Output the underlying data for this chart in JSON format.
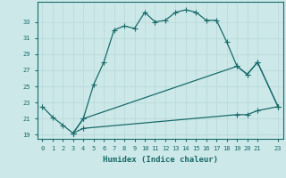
{
  "xlabel": "Humidex (Indice chaleur)",
  "bg_color": "#cce8e8",
  "grid_color": "#b0d4d4",
  "line_color": "#1a6b6b",
  "line1_x": [
    0,
    1,
    2,
    3,
    4,
    5,
    6,
    7,
    8,
    9,
    10,
    11,
    12,
    13,
    14,
    15,
    16,
    17,
    18,
    19,
    20,
    21,
    23
  ],
  "line1_y": [
    22.5,
    21.2,
    20.2,
    19.2,
    21.0,
    25.2,
    28.0,
    32.0,
    32.5,
    32.2,
    34.2,
    33.0,
    33.2,
    34.2,
    34.5,
    34.2,
    33.2,
    33.2,
    30.5,
    27.5,
    26.5,
    28.0,
    22.5
  ],
  "line2_x": [
    3,
    4,
    19,
    20,
    21,
    23
  ],
  "line2_y": [
    19.2,
    21.0,
    27.5,
    26.5,
    28.0,
    22.5
  ],
  "line3_x": [
    3,
    4,
    19,
    20,
    21,
    23
  ],
  "line3_y": [
    19.2,
    19.8,
    21.5,
    21.5,
    22.0,
    22.5
  ],
  "xlim": [
    -0.5,
    23.5
  ],
  "ylim": [
    18.5,
    35.5
  ],
  "yticks": [
    19,
    21,
    23,
    25,
    27,
    29,
    31,
    33
  ],
  "xticks": [
    0,
    1,
    2,
    3,
    4,
    5,
    6,
    7,
    8,
    9,
    10,
    11,
    12,
    13,
    14,
    15,
    16,
    17,
    18,
    19,
    20,
    21,
    23
  ]
}
